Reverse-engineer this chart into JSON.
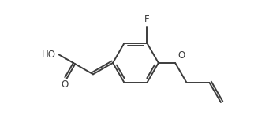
{
  "background": "#ffffff",
  "line_color": "#3c3c3c",
  "line_width": 1.4,
  "font_size": 8.5,
  "fig_width": 3.41,
  "fig_height": 1.55,
  "dpi": 100,
  "label_F": "F",
  "label_HO": "HO",
  "label_O": "O",
  "label_O2": "O"
}
